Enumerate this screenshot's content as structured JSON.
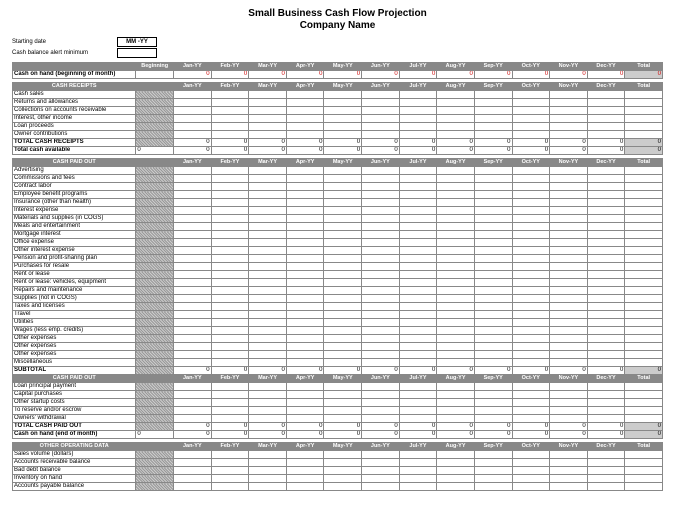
{
  "title": "Small Business Cash Flow Projection",
  "subtitle": "Company Name",
  "meta": {
    "starting_date_label": "Starting date",
    "starting_date_value": "MM -YY",
    "alert_min_label": "Cash balance alert minimum"
  },
  "columns": {
    "beginning": "Beginning",
    "months": [
      "Jan-YY",
      "Feb-YY",
      "Mar-YY",
      "Apr-YY",
      "May-YY",
      "Jun-YY",
      "Jul-YY",
      "Aug-YY",
      "Sep-YY",
      "Oct-YY",
      "Nov-YY",
      "Dec-YY"
    ],
    "total": "Total"
  },
  "months_alt": [
    "Jan-YY",
    "Feb-YY",
    "Mar-YY",
    "Apr-YY",
    "May-YY",
    "Jun-YY",
    "Jul-YY",
    "Aug-YY",
    "Sep-YY",
    "Oct-YY",
    "Nov-YY",
    "Dec-YY"
  ],
  "cash_on_hand_label": "Cash on hand (beginning of month)",
  "sections": {
    "receipts": {
      "header": "CASH RECEIPTS",
      "rows": [
        "Cash sales",
        "Returns and allowances",
        "Collections on accounts receivable",
        "Interest, other income",
        "Loan proceeds",
        "Owner contributions"
      ],
      "total_label": "TOTAL CASH RECEIPTS",
      "available_label": "Total cash available"
    },
    "paid": {
      "header": "CASH PAID OUT",
      "rows": [
        "Advertising",
        "Commissions and fees",
        "Contract labor",
        "Employee benefit programs",
        "Insurance (other than health)",
        "Interest expense",
        "Materials and supplies (in COGS)",
        "Meals and entertainment",
        "Mortgage interest",
        "Office expense",
        "Other interest expense",
        "Pension and profit-sharing plan",
        "Purchases for resale",
        "Rent or lease",
        "Rent or lease: vehicles, equipment",
        "Repairs and maintenance",
        "Supplies (not in COGS)",
        "Taxes and licenses",
        "Travel",
        "Utilities",
        "Wages (less emp. credits)",
        "Other expenses",
        "Other expenses",
        "Other expenses",
        "Miscellaneous"
      ],
      "subtotal_label": "SUBTOTAL",
      "header2": "CASH PAID OUT",
      "rows2": [
        "Loan principal payment",
        "Capital purchases",
        "Other startup costs",
        "To reserve and/or escrow",
        "Owners' withdrawal"
      ],
      "total_label": "TOTAL CASH PAID OUT",
      "end_label": "Cash on hand (end of month)"
    },
    "other": {
      "header": "OTHER OPERATING DATA",
      "rows": [
        "Sales volume (dollars)",
        "Accounts receivable balance",
        "Bad debt balance",
        "Inventory on hand",
        "Accounts payable balance"
      ]
    }
  },
  "colors": {
    "header_bg": "#888888",
    "hatch_a": "#999999",
    "hatch_b": "#cccccc",
    "zero_red": "#cc0000",
    "border": "#888888"
  }
}
